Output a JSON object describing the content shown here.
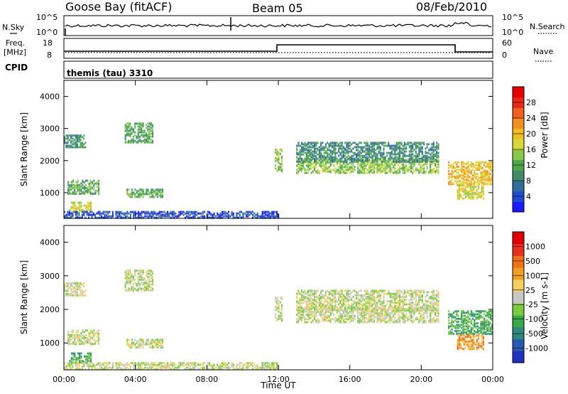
{
  "header": {
    "station": "Goose Bay (fitACF)",
    "beam": "Beam 05",
    "date": "08/Feb/2010"
  },
  "top_panels": {
    "nsky_label": "N.Sky",
    "nsearch_label": "N.Search",
    "noise_ticks": [
      "10^5",
      "10^0"
    ],
    "freq_label": "Freq.",
    "freq_unit": "[MHz]",
    "freq_ticks": [
      "18",
      "8"
    ],
    "nave_label": "Nave",
    "nave_ticks": [
      "60",
      "0"
    ],
    "cpid_label": "CPID",
    "cpid_value": "themis (tau) 3310"
  },
  "chart_data": [
    {
      "type": "heatmap",
      "name": "power",
      "xlabel": "Time UT",
      "ylabel": "Slant Range [km]",
      "xlim": [
        0,
        24
      ],
      "ylim": [
        200,
        4500
      ],
      "xticks": [
        "00:00",
        "04:00",
        "08:00",
        "12:00",
        "16:00",
        "20:00",
        "00:00"
      ],
      "yticks": [
        1000,
        2000,
        3000,
        4000
      ],
      "colorbar": {
        "label": "Power [dB]",
        "ticks": [
          "4",
          "8",
          "12",
          "16",
          "20",
          "24",
          "28"
        ],
        "colors": [
          "#1a1aff",
          "#1f4fd0",
          "#2f6e9a",
          "#3f8a6a",
          "#4aa84a",
          "#88c84a",
          "#d8d83a",
          "#f0c020",
          "#f09020",
          "#f06020",
          "#e82818",
          "#e80000"
        ]
      },
      "regions": [
        {
          "t": [
            0.0,
            1.2
          ],
          "r": [
            2450,
            2850
          ],
          "level": 3
        },
        {
          "t": [
            3.4,
            5.0
          ],
          "r": [
            2600,
            3200
          ],
          "level": 4
        },
        {
          "t": [
            0.2,
            2.0
          ],
          "r": [
            1000,
            1450
          ],
          "level": 4
        },
        {
          "t": [
            3.5,
            5.5
          ],
          "r": [
            900,
            1150
          ],
          "level": 4
        },
        {
          "t": [
            0.3,
            1.5
          ],
          "r": [
            450,
            750
          ],
          "level": 6
        },
        {
          "t": [
            11.8,
            12.2
          ],
          "r": [
            1700,
            2400
          ],
          "level": 5
        },
        {
          "t": [
            13.0,
            21.0
          ],
          "r": [
            1650,
            2100
          ],
          "level": 5
        },
        {
          "t": [
            13.0,
            21.0
          ],
          "r": [
            2000,
            2600
          ],
          "level": 3
        },
        {
          "t": [
            21.5,
            24.0
          ],
          "r": [
            1300,
            2000
          ],
          "level": 7
        },
        {
          "t": [
            22.0,
            23.5
          ],
          "r": [
            850,
            1300
          ],
          "level": 6
        },
        {
          "t": [
            0.0,
            12.0
          ],
          "r": [
            250,
            450
          ],
          "level": 1
        }
      ]
    },
    {
      "type": "heatmap",
      "name": "velocity",
      "xlabel": "Time UT",
      "ylabel": "Slant Range [km]",
      "xlim": [
        0,
        24
      ],
      "ylim": [
        200,
        4500
      ],
      "xticks": [
        "00:00",
        "04:00",
        "08:00",
        "12:00",
        "16:00",
        "20:00",
        "00:00"
      ],
      "yticks": [
        1000,
        2000,
        3000,
        4000
      ],
      "colorbar": {
        "label": "Velocity [m s-1]",
        "ticks": [
          "1000",
          "500",
          "100",
          "25",
          "-25",
          "-100",
          "-500",
          "-1000"
        ],
        "colors": [
          "#2030c0",
          "#2a5ab0",
          "#2e8a7a",
          "#3aa84a",
          "#7acd40",
          "#c8c8c4",
          "#f0d060",
          "#f0a020",
          "#f07018",
          "#e83020",
          "#e00000"
        ]
      },
      "regions": [
        {
          "t": [
            0.0,
            1.2
          ],
          "r": [
            2450,
            2850
          ],
          "level": 5
        },
        {
          "t": [
            3.4,
            5.0
          ],
          "r": [
            2600,
            3200
          ],
          "level": 5
        },
        {
          "t": [
            0.2,
            2.0
          ],
          "r": [
            1000,
            1450
          ],
          "level": 5
        },
        {
          "t": [
            3.5,
            5.5
          ],
          "r": [
            900,
            1150
          ],
          "level": 5
        },
        {
          "t": [
            0.3,
            1.5
          ],
          "r": [
            450,
            750
          ],
          "level": 3
        },
        {
          "t": [
            11.8,
            12.2
          ],
          "r": [
            1700,
            2400
          ],
          "level": 5
        },
        {
          "t": [
            13.0,
            21.0
          ],
          "r": [
            1650,
            2100
          ],
          "level": 5
        },
        {
          "t": [
            13.0,
            21.0
          ],
          "r": [
            2000,
            2600
          ],
          "level": 5
        },
        {
          "t": [
            21.5,
            24.0
          ],
          "r": [
            1300,
            2000
          ],
          "level": 3
        },
        {
          "t": [
            22.0,
            23.5
          ],
          "r": [
            850,
            1300
          ],
          "level": 7
        },
        {
          "t": [
            0.0,
            12.0
          ],
          "r": [
            250,
            450
          ],
          "level": 5
        }
      ]
    }
  ]
}
